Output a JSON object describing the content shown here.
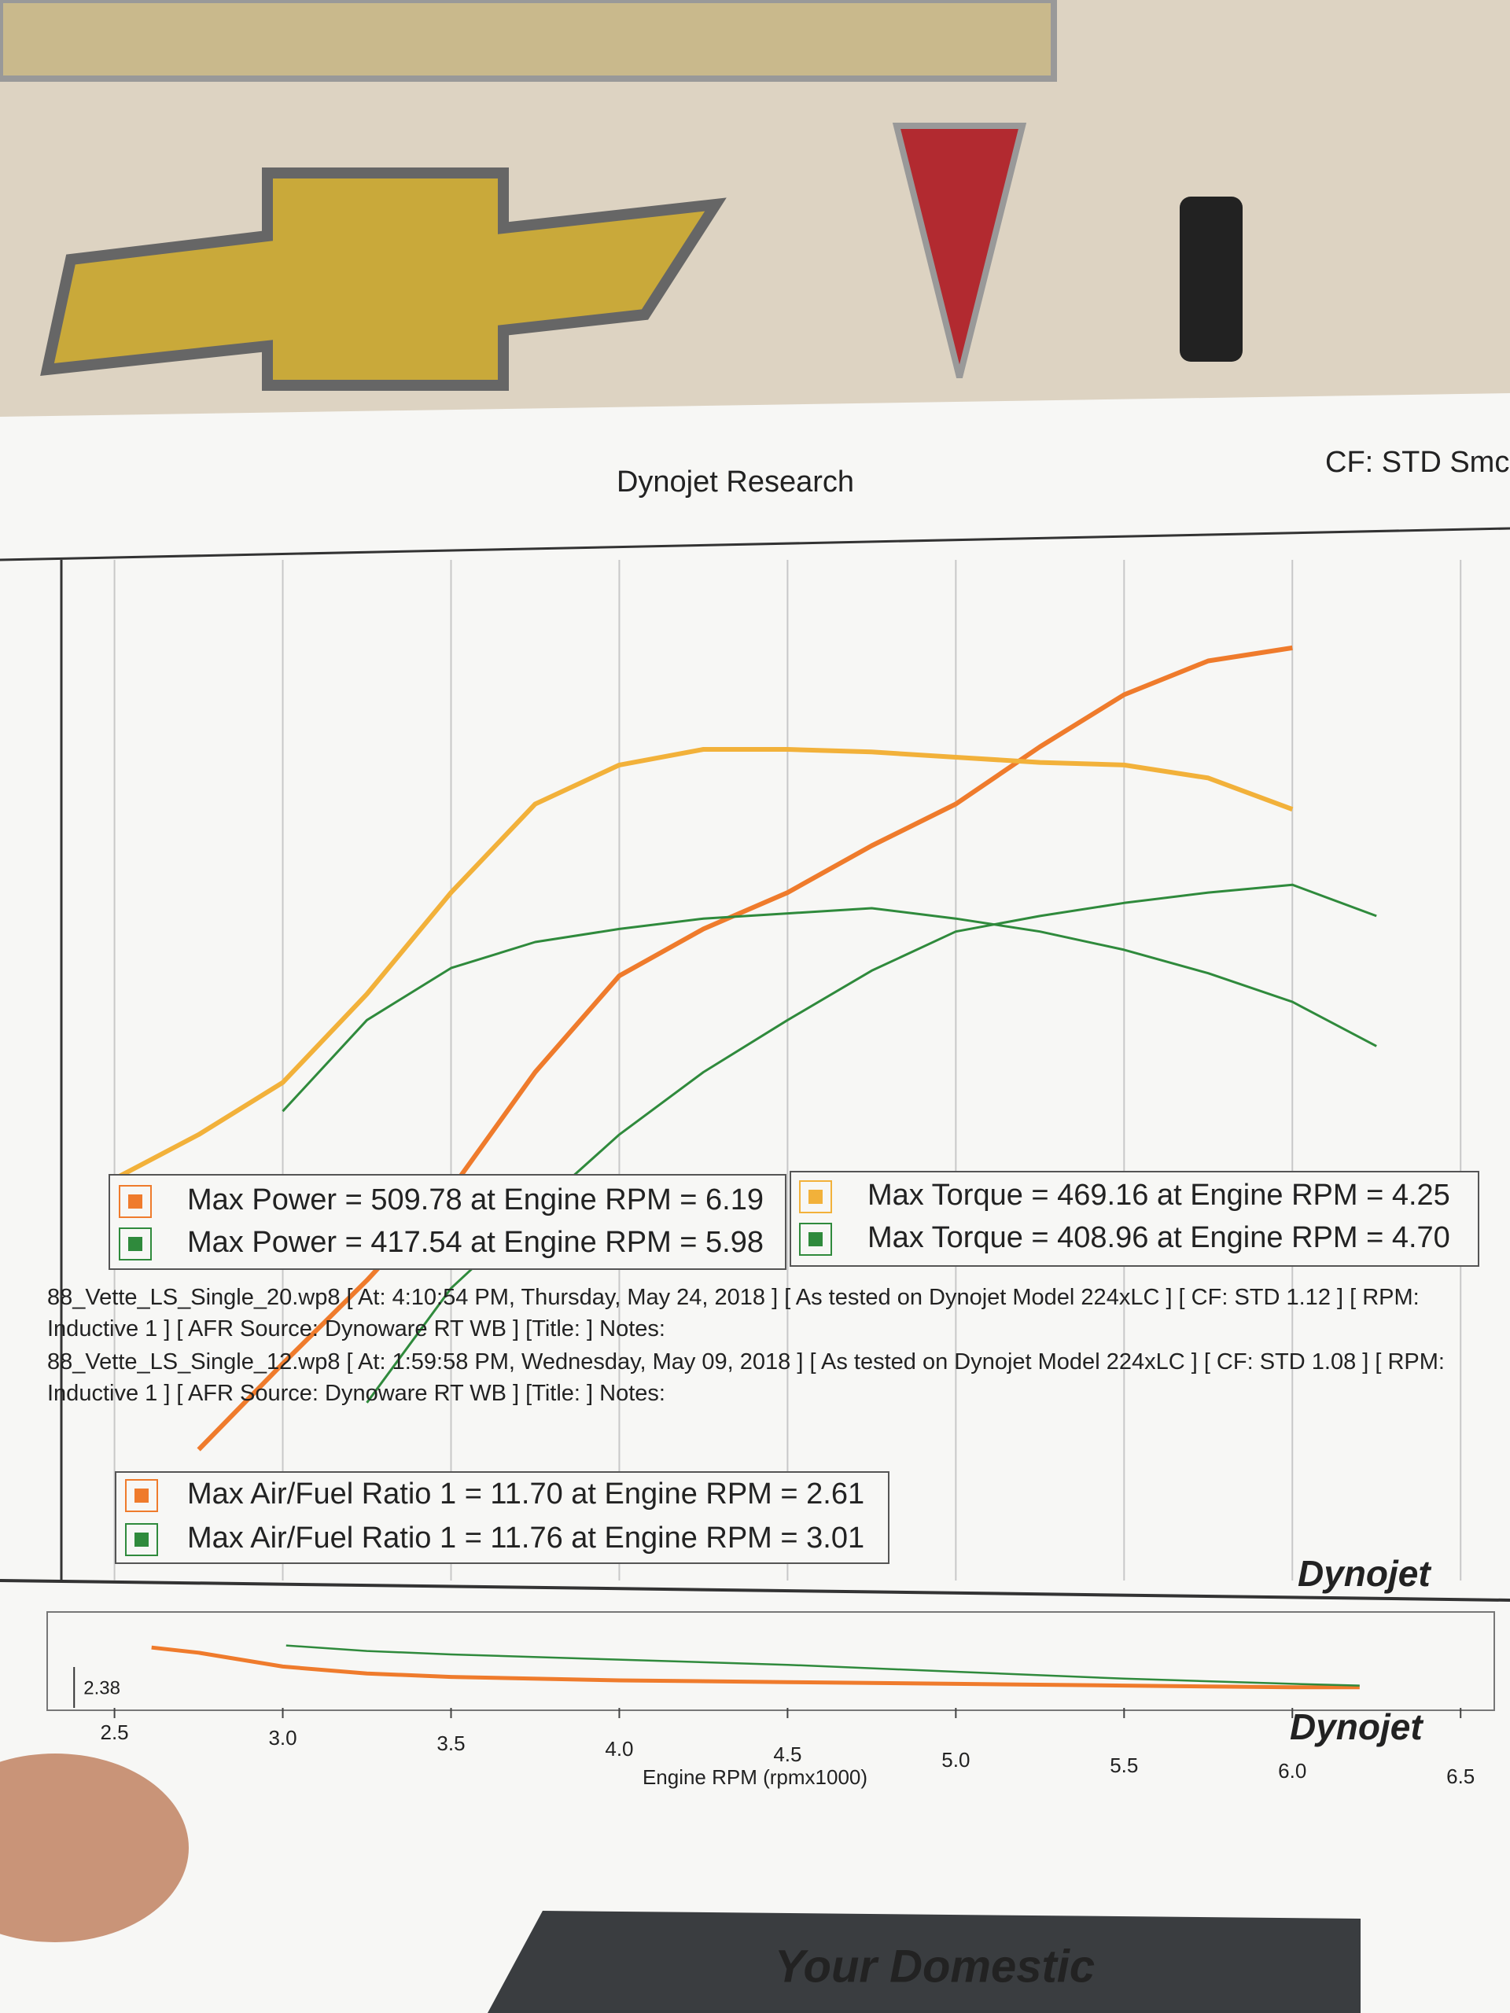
{
  "header": {
    "title": "Dynojet Research",
    "right": "CF: STD Smc"
  },
  "chart_data": [
    {
      "type": "line",
      "x": [
        2.5,
        2.75,
        3.0,
        3.25,
        3.5,
        3.75,
        4.0,
        4.25,
        4.5,
        4.75,
        5.0,
        5.25,
        5.5,
        5.75,
        6.0,
        6.25
      ],
      "xlim": [
        2.3,
        6.6
      ],
      "ylim": [
        150,
        540
      ],
      "grid": true,
      "series": [
        {
          "name": "Max Power = 509.78 at Engine RPM = 6.19",
          "color": "#ef7b2c",
          "values": [
            null,
            200,
            233,
            265,
            300,
            345,
            382,
            400,
            414,
            432,
            448,
            470,
            490,
            503,
            508,
            null
          ]
        },
        {
          "name": "Max Torque = 469.16 at Engine RPM = 4.25",
          "color": "#f2b13a",
          "values": [
            304,
            321,
            341,
            375,
            414,
            448,
            463,
            469,
            469,
            468,
            466,
            464,
            463,
            458,
            446,
            null
          ]
        },
        {
          "name": "Max Power = 417.54 at Engine RPM = 5.98",
          "color": "#2f8a3c",
          "values": [
            null,
            null,
            null,
            218,
            262,
            292,
            321,
            345,
            365,
            384,
            399,
            405,
            410,
            414,
            417,
            405
          ]
        },
        {
          "name": "Max Torque = 408.96 at Engine RPM = 4.70",
          "color": "#2f8a3c",
          "values": [
            null,
            null,
            330,
            365,
            385,
            395,
            400,
            404,
            406,
            408,
            404,
            399,
            392,
            383,
            372,
            355
          ]
        }
      ]
    },
    {
      "type": "line",
      "x": [
        2.61,
        2.75,
        3.0,
        3.01,
        3.25,
        3.5,
        4.0,
        4.5,
        5.0,
        5.5,
        6.0,
        6.2
      ],
      "xlim": [
        2.3,
        6.6
      ],
      "ylim": [
        10,
        12.5
      ],
      "x_label": "Engine RPM (rpmx1000)",
      "xticks": [
        2.5,
        {
          "value": 3,
          "label": "3.0"
        },
        3.5,
        {
          "value": 4,
          "label": "4.0"
        },
        4.5,
        {
          "value": 5,
          "label": "5.0"
        },
        5.5,
        {
          "value": 6,
          "label": "6.0"
        },
        6.5
      ],
      "cursor": 2.38,
      "series": [
        {
          "name": "Max Air/Fuel Ratio 1 = 11.70 at Engine RPM = 2.61",
          "color": "#ef7b2c",
          "values": [
            11.7,
            11.55,
            11.15,
            11.14,
            10.95,
            10.85,
            10.75,
            10.7,
            10.65,
            10.6,
            10.55,
            10.55
          ]
        },
        {
          "name": "Max Air/Fuel Ratio 1 = 11.76 at Engine RPM = 3.01",
          "color": "#2f8a3c",
          "values": [
            null,
            null,
            null,
            11.76,
            11.6,
            11.5,
            11.35,
            11.2,
            11.0,
            10.8,
            10.65,
            10.6
          ]
        }
      ]
    }
  ],
  "runs": [
    "88_Vette_LS_Single_20.wp8 [ At: 4:10:54 PM, Thursday, May 24, 2018 ] [ As tested on Dynojet Model 224xLC ] [ CF: STD 1.12 ] [ RPM: Inductive 1 ] [ AFR Source: Dynoware RT WB ] [Title: ] Notes:",
    "88_Vette_LS_Single_12.wp8 [ At: 1:59:58 PM, Wednesday, May 09, 2018 ] [ As tested on Dynojet Model 224xLC ] [ CF: STD 1.08 ] [ RPM: Inductive 1 ] [ AFR Source: Dynoware RT WB ] [Title: ] Notes:"
  ],
  "logo": "Dynojet",
  "banner": "Your Domestic"
}
